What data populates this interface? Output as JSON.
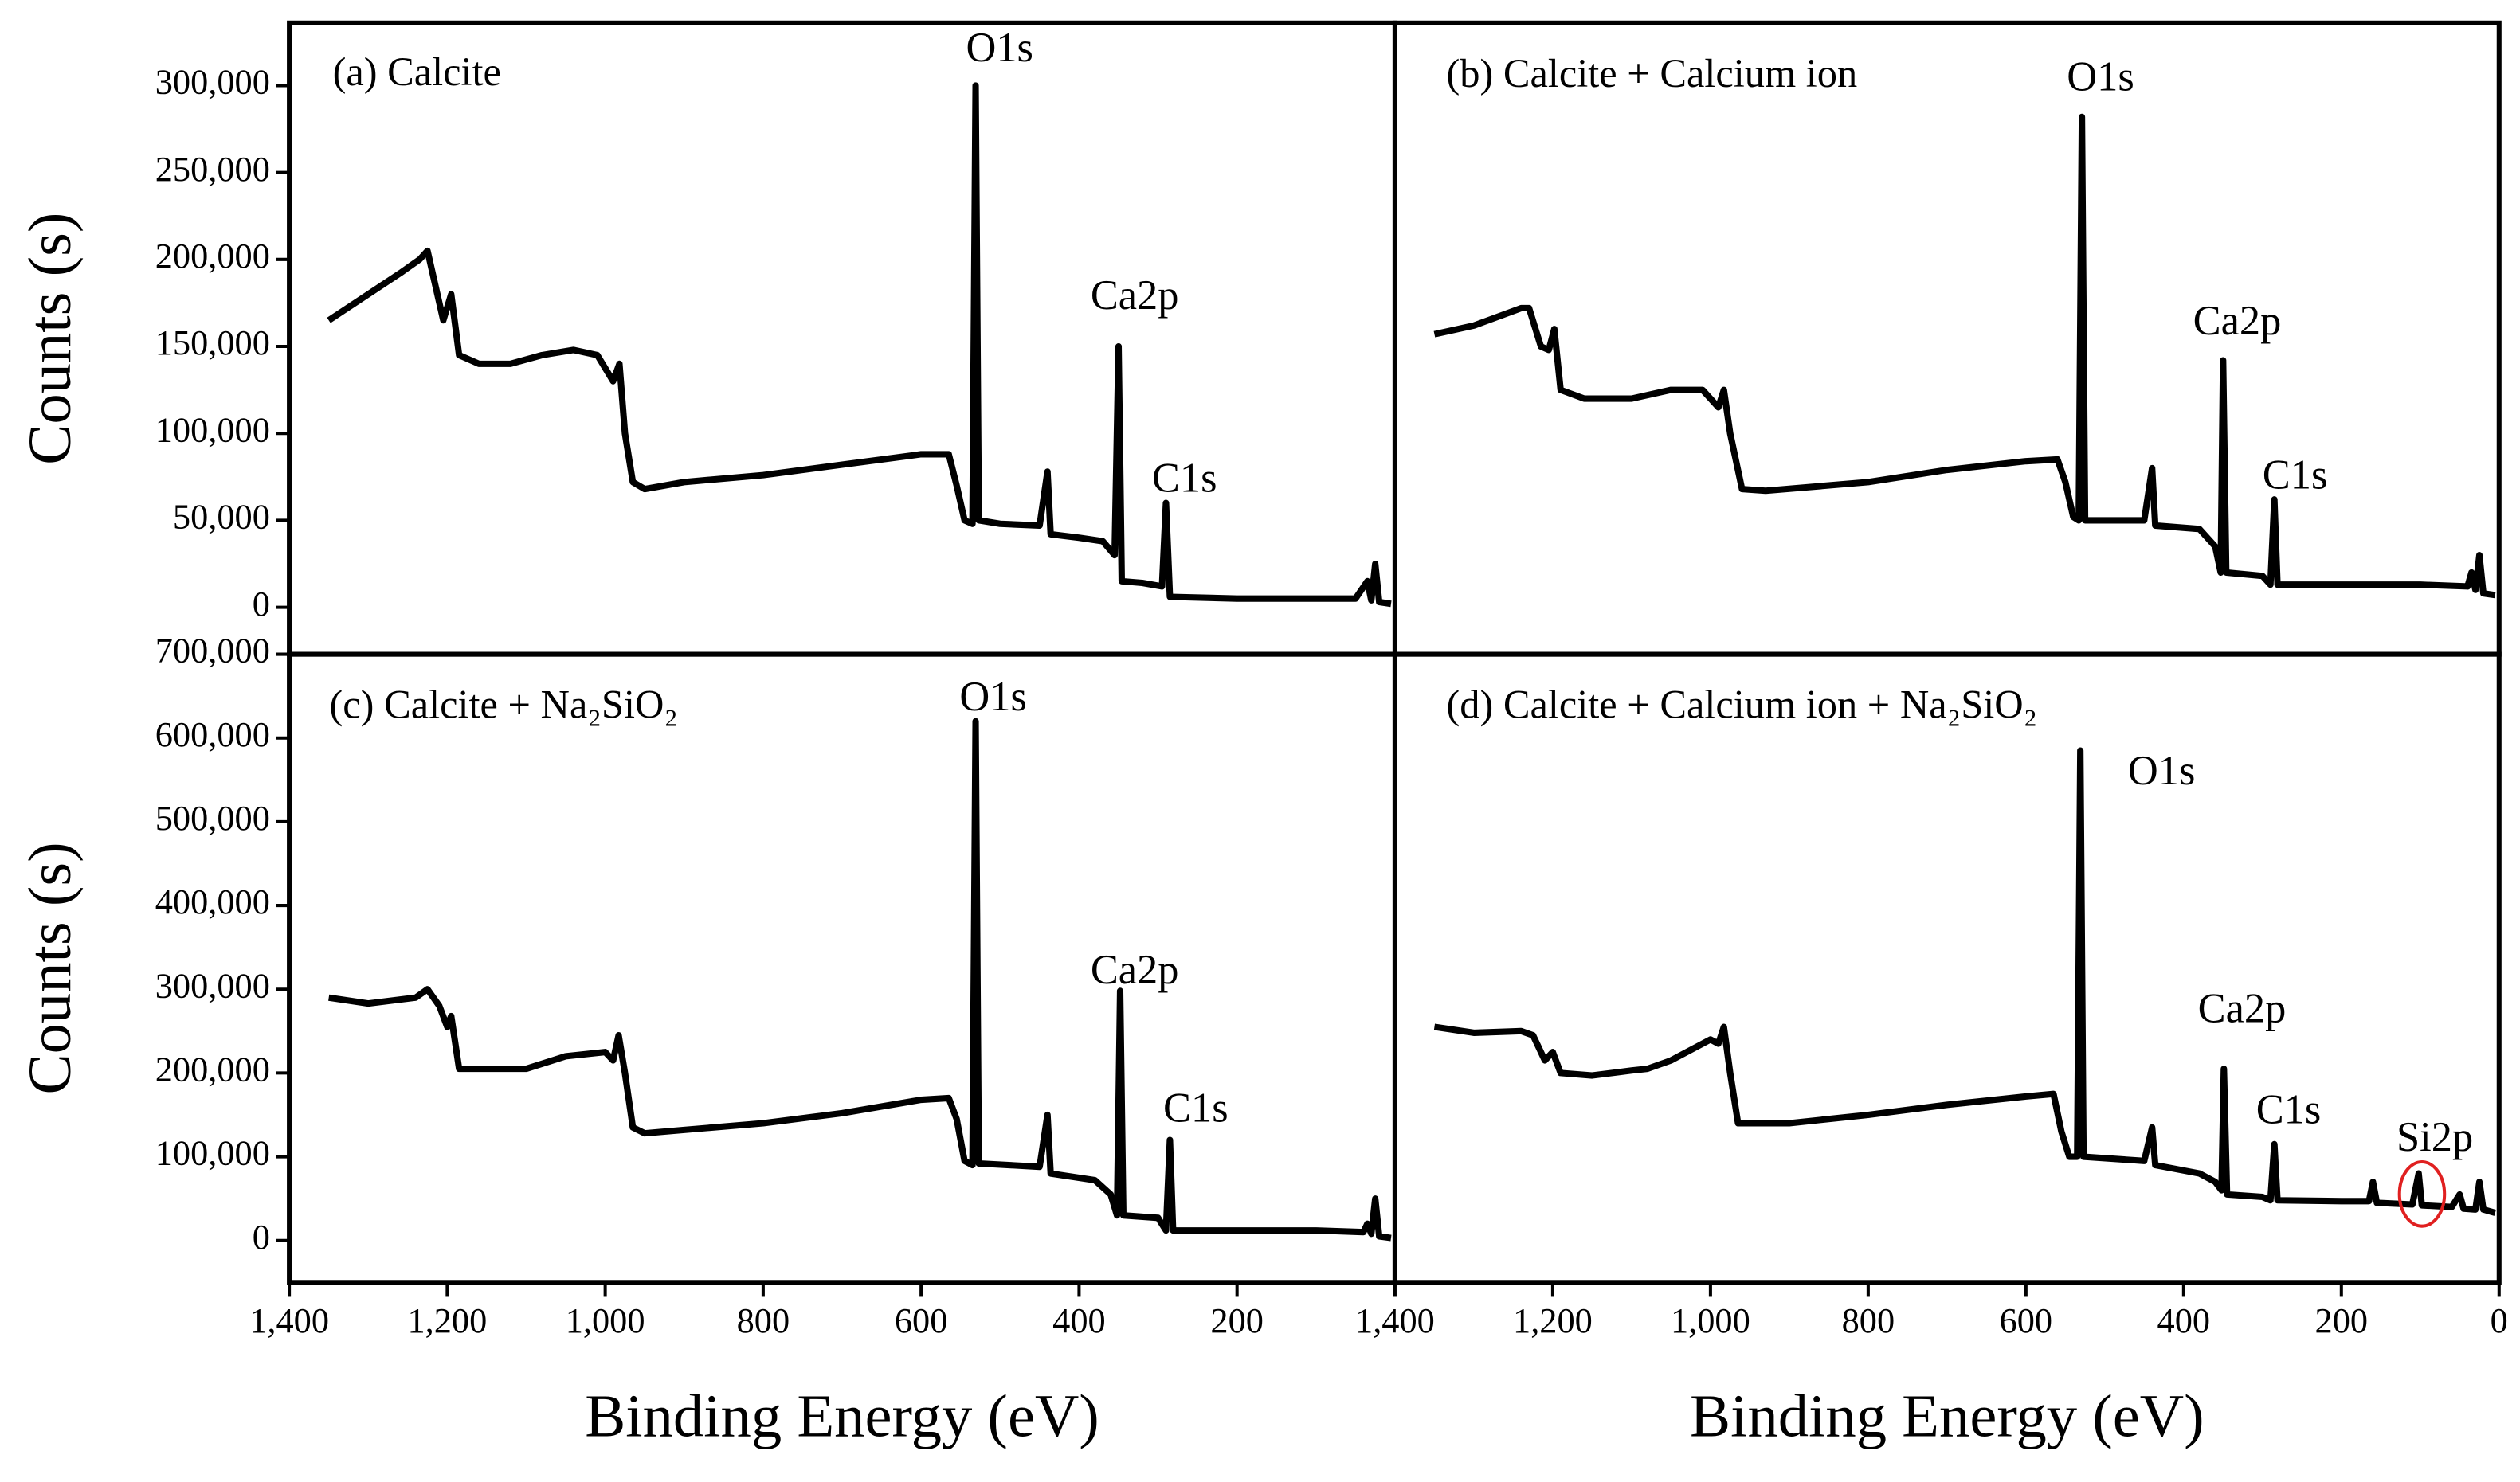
{
  "chart_data": [
    {
      "type": "line",
      "title": "(a) Calcite",
      "ylabel": "Counts (s)",
      "color": "#000000",
      "xlim": [
        1400,
        0
      ],
      "ylim": [
        -27000,
        336000
      ],
      "yticks": [
        0,
        {
          "value": 50000,
          "label": "50,000"
        },
        {
          "value": 100000,
          "label": "100,000"
        },
        {
          "value": 150000,
          "label": "150,000"
        },
        {
          "value": 200000,
          "label": "200,000"
        },
        {
          "value": 250000,
          "label": "250,000"
        },
        {
          "value": 300000,
          "label": "300,000"
        }
      ],
      "annotations": [
        "O1s",
        "Ca2p",
        "C1s"
      ],
      "series": [
        {
          "name": "Calcite",
          "color": "#000000",
          "x": [
            1350,
            1300,
            1260,
            1235,
            1225,
            1215,
            1205,
            1195,
            1185,
            1160,
            1120,
            1080,
            1040,
            1010,
            990,
            982,
            975,
            965,
            950,
            900,
            800,
            700,
            600,
            565,
            555,
            545,
            535,
            531,
            527,
            500,
            450,
            440,
            436,
            400,
            370,
            355,
            350,
            346,
            320,
            295,
            290,
            285,
            200,
            100,
            50,
            35,
            30,
            25,
            20,
            5
          ],
          "values": [
            165000,
            180000,
            192000,
            200000,
            205000,
            185000,
            165000,
            180000,
            145000,
            140000,
            140000,
            145000,
            148000,
            145000,
            130000,
            140000,
            100000,
            72000,
            68000,
            72000,
            76000,
            82000,
            88000,
            88000,
            70000,
            50000,
            48000,
            300000,
            50000,
            48000,
            47000,
            78000,
            42000,
            40000,
            38000,
            30000,
            150000,
            15000,
            14000,
            12000,
            60000,
            6000,
            5000,
            5000,
            5000,
            15000,
            4000,
            25000,
            3000,
            2000
          ]
        }
      ]
    },
    {
      "type": "line",
      "title": "(b) Calcite + Calcium ion",
      "color": "#000000",
      "xlim": [
        1400,
        0
      ],
      "ylim": [
        -27000,
        336000
      ],
      "annotations": [
        "O1s",
        "Ca2p",
        "C1s"
      ],
      "series": [
        {
          "name": "Calcite + Calcium ion",
          "color": "#000000",
          "x": [
            1350,
            1300,
            1240,
            1230,
            1215,
            1205,
            1198,
            1190,
            1160,
            1100,
            1050,
            1010,
            990,
            983,
            975,
            960,
            930,
            800,
            700,
            600,
            560,
            550,
            540,
            533,
            529,
            525,
            450,
            440,
            436,
            380,
            360,
            353,
            350,
            346,
            300,
            290,
            285,
            281,
            100,
            40,
            35,
            30,
            25,
            20,
            5
          ],
          "values": [
            157000,
            162000,
            172000,
            172000,
            150000,
            148000,
            160000,
            125000,
            120000,
            120000,
            125000,
            125000,
            115000,
            125000,
            100000,
            68000,
            67000,
            72000,
            79000,
            84000,
            85000,
            72000,
            52000,
            50000,
            282000,
            50000,
            50000,
            80000,
            47000,
            45000,
            35000,
            20000,
            142000,
            20000,
            18000,
            13000,
            62000,
            13000,
            13000,
            12000,
            20000,
            10000,
            30000,
            8000,
            7000
          ]
        }
      ]
    },
    {
      "type": "line",
      "title": "(c) Calcite + Na₂SiO₂",
      "ylabel": "Counts (s)",
      "xlabel": "Binding Energy (eV)",
      "color": "#000000",
      "xlim": [
        1400,
        0
      ],
      "ylim": [
        -50000,
        700000
      ],
      "xticks": [
        {
          "value": 1400,
          "label": "1,400"
        },
        {
          "value": 1200,
          "label": "1,200"
        },
        {
          "value": 1000,
          "label": "1,000"
        },
        800,
        600,
        400,
        200
      ],
      "yticks": [
        0,
        {
          "value": 100000,
          "label": "100,000"
        },
        {
          "value": 200000,
          "label": "200,000"
        },
        {
          "value": 300000,
          "label": "300,000"
        },
        {
          "value": 400000,
          "label": "400,000"
        },
        {
          "value": 500000,
          "label": "500,000"
        },
        {
          "value": 600000,
          "label": "600,000"
        },
        {
          "value": 700000,
          "label": "700,000"
        }
      ],
      "annotations": [
        "O1s",
        "Ca2p",
        "C1s"
      ],
      "series": [
        {
          "name": "Calcite + Na₂SiO₂",
          "color": "#000000",
          "x": [
            1350,
            1300,
            1240,
            1225,
            1210,
            1200,
            1195,
            1185,
            1150,
            1100,
            1050,
            1000,
            990,
            983,
            975,
            965,
            950,
            900,
            800,
            700,
            600,
            565,
            555,
            545,
            535,
            531,
            527,
            450,
            440,
            436,
            380,
            360,
            352,
            348,
            344,
            300,
            290,
            285,
            281,
            100,
            40,
            35,
            30,
            25,
            20,
            5
          ],
          "values": [
            290000,
            283000,
            290000,
            300000,
            280000,
            255000,
            268000,
            205000,
            205000,
            205000,
            220000,
            225000,
            215000,
            245000,
            200000,
            135000,
            128000,
            132000,
            140000,
            152000,
            168000,
            170000,
            145000,
            95000,
            90000,
            620000,
            92000,
            88000,
            150000,
            80000,
            72000,
            55000,
            30000,
            298000,
            30000,
            27000,
            12000,
            120000,
            12000,
            12000,
            10000,
            20000,
            8000,
            50000,
            5000,
            3000
          ]
        }
      ]
    },
    {
      "type": "line",
      "title": "(d) Calcite + Calcium ion + Na₂SiO₂",
      "xlabel": "Binding Energy (eV)",
      "color": "#000000",
      "xlim": [
        1400,
        0
      ],
      "ylim": [
        -50000,
        700000
      ],
      "xticks": [
        {
          "value": 1400,
          "label": "1,400"
        },
        {
          "value": 1200,
          "label": "1,200"
        },
        {
          "value": 1000,
          "label": "1,000"
        },
        800,
        600,
        400,
        200,
        0
      ],
      "annotations": [
        "O1s",
        "Ca2p",
        "C1s",
        "Si2p"
      ],
      "series": [
        {
          "name": "Calcite + Calcium ion + Na₂SiO₂",
          "color": "#000000",
          "x": [
            1350,
            1300,
            1240,
            1225,
            1210,
            1200,
            1190,
            1150,
            1100,
            1080,
            1050,
            1000,
            990,
            983,
            975,
            965,
            900,
            800,
            700,
            600,
            565,
            555,
            545,
            535,
            531,
            527,
            450,
            440,
            436,
            380,
            360,
            352,
            349,
            345,
            300,
            290,
            285,
            281,
            200,
            165,
            160,
            155,
            110,
            102,
            98,
            60,
            50,
            45,
            30,
            25,
            20,
            5
          ],
          "values": [
            255000,
            248000,
            250000,
            245000,
            215000,
            225000,
            200000,
            197000,
            203000,
            205000,
            215000,
            240000,
            235000,
            255000,
            200000,
            140000,
            140000,
            150000,
            162000,
            172000,
            175000,
            130000,
            100000,
            100000,
            585000,
            100000,
            95000,
            135000,
            90000,
            80000,
            70000,
            60000,
            205000,
            55000,
            52000,
            48000,
            115000,
            48000,
            47000,
            47000,
            70000,
            45000,
            43000,
            80000,
            42000,
            40000,
            55000,
            38000,
            37000,
            70000,
            37000,
            33000
          ]
        }
      ]
    }
  ]
}
